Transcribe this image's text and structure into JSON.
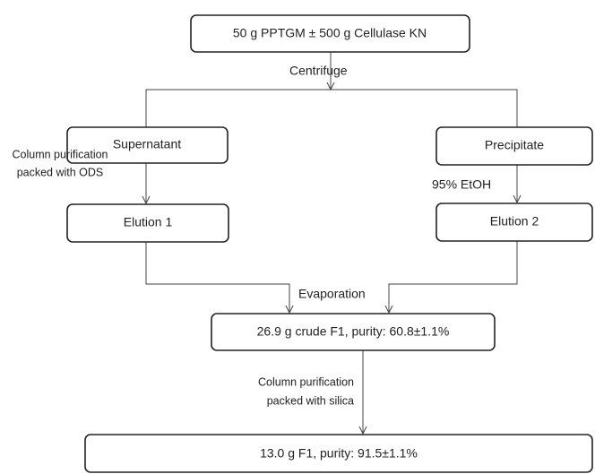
{
  "nodes": [
    {
      "label": "50 g PPTGM ± 500 g Cellulase KN"
    },
    {
      "label": "Supernatant"
    },
    {
      "label": "Precipitate"
    },
    {
      "label": "Elution 1"
    },
    {
      "label": "Elution 2"
    },
    {
      "label": "26.9 g crude F1, purity: 60.8±1.1%"
    },
    {
      "label": "13.0 g F1,  purity: 91.5±1.1%"
    }
  ],
  "edge_labels": [
    {
      "lines": [
        "Centrifuge"
      ]
    },
    {
      "lines": [
        "Column purification",
        "packed with ODS"
      ]
    },
    {
      "lines": [
        "95% EtOH"
      ]
    },
    {
      "lines": [
        "Evaporation"
      ]
    },
    {
      "lines": [
        "Column purification",
        "packed with silica"
      ]
    }
  ]
}
